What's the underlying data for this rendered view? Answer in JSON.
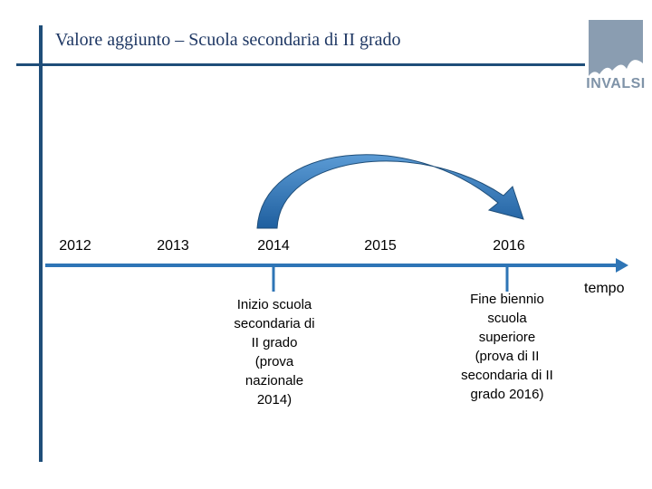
{
  "slide": {
    "title": "Valore aggiunto – Scuola secondaria di II grado",
    "logo_text": "INVALSI",
    "years": [
      "2012",
      "2013",
      "2014",
      "2015",
      "2016"
    ],
    "axis_label": "tempo",
    "event_2014": [
      "Inizio scuola",
      "secondaria di",
      "II grado",
      "(prova",
      "nazionale",
      "2014)"
    ],
    "event_2016": [
      "Fine biennio",
      "scuola",
      "superiore",
      "(prova di II",
      "secondaria di II",
      "grado 2016)"
    ]
  },
  "colors": {
    "accent": "#1f4e79",
    "arrow": "#2e75b6",
    "logo": "#8a9db1"
  }
}
